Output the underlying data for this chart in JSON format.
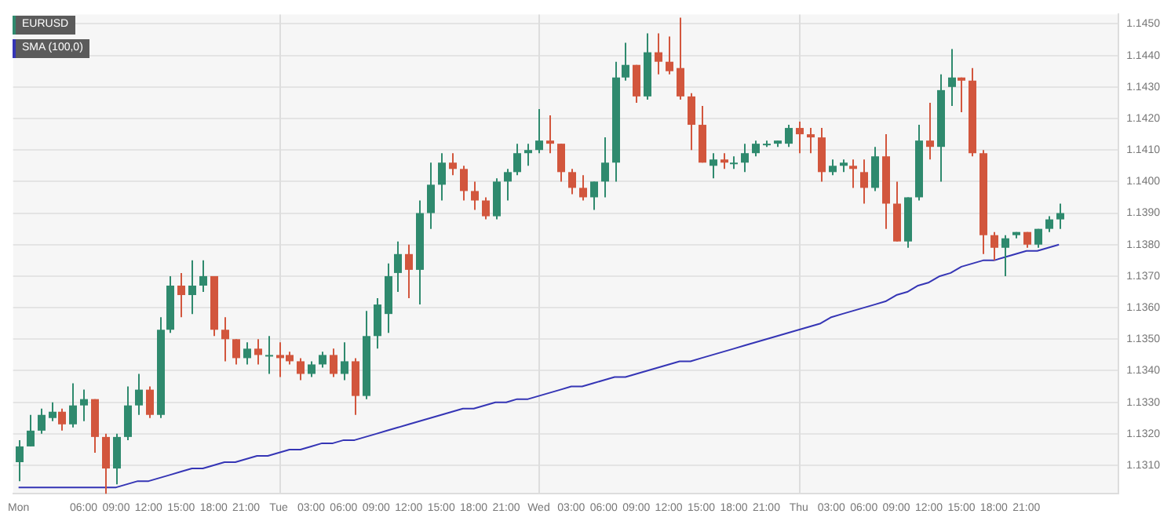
{
  "chart_data": {
    "type": "candlestick",
    "categories": [
      "Mon",
      null,
      null,
      null,
      null,
      null,
      "06:00",
      null,
      null,
      "09:00",
      null,
      null,
      "12:00",
      null,
      null,
      "15:00",
      null,
      null,
      "18:00",
      null,
      null,
      "21:00",
      null,
      null,
      "Tue",
      null,
      null,
      "03:00",
      null,
      null,
      "06:00",
      null,
      null,
      "09:00",
      null,
      null,
      "12:00",
      null,
      null,
      "15:00",
      null,
      null,
      "18:00",
      null,
      null,
      "21:00",
      null,
      null,
      "Wed",
      null,
      null,
      "03:00",
      null,
      null,
      "06:00",
      null,
      null,
      "09:00",
      null,
      null,
      "12:00",
      null,
      null,
      "15:00",
      null,
      null,
      "18:00",
      null,
      null,
      "21:00",
      null,
      null,
      "Thu",
      null,
      null,
      "03:00",
      null,
      null,
      "06:00",
      null,
      null,
      "09:00",
      null,
      null,
      "12:00",
      null,
      null,
      "15:00",
      null,
      null,
      "18:00",
      null,
      null,
      "21:00",
      null,
      null,
      null,
      null,
      null,
      null,
      null,
      null
    ],
    "series": [
      {
        "name": "EURUSD",
        "ohlc": [
          [
            1.1311,
            1.1318,
            1.1305,
            1.1316
          ],
          [
            1.1316,
            1.1326,
            1.1316,
            1.1321
          ],
          [
            1.1321,
            1.1328,
            1.132,
            1.1326
          ],
          [
            1.1325,
            1.133,
            1.1324,
            1.1327
          ],
          [
            1.1327,
            1.1328,
            1.1321,
            1.1323
          ],
          [
            1.1323,
            1.1336,
            1.1322,
            1.1329
          ],
          [
            1.1329,
            1.1334,
            1.1324,
            1.1331
          ],
          [
            1.1331,
            1.1331,
            1.1314,
            1.1319
          ],
          [
            1.1319,
            1.132,
            1.1301,
            1.1309
          ],
          [
            1.1309,
            1.132,
            1.1304,
            1.1319
          ],
          [
            1.1319,
            1.1335,
            1.1318,
            1.1329
          ],
          [
            1.1329,
            1.1339,
            1.1326,
            1.1334
          ],
          [
            1.1334,
            1.1335,
            1.1325,
            1.1326
          ],
          [
            1.1326,
            1.1357,
            1.1325,
            1.1353
          ],
          [
            1.1353,
            1.137,
            1.1352,
            1.1367
          ],
          [
            1.1367,
            1.1371,
            1.1357,
            1.1364
          ],
          [
            1.1364,
            1.1375,
            1.1358,
            1.1367
          ],
          [
            1.1367,
            1.1375,
            1.1365,
            1.137
          ],
          [
            1.137,
            1.137,
            1.1351,
            1.1353
          ],
          [
            1.1353,
            1.1357,
            1.1343,
            1.135
          ],
          [
            1.135,
            1.135,
            1.1342,
            1.1344
          ],
          [
            1.1344,
            1.1349,
            1.1342,
            1.1347
          ],
          [
            1.1347,
            1.135,
            1.1342,
            1.1345
          ],
          [
            1.1345,
            1.1351,
            1.1339,
            1.1345
          ],
          [
            1.1345,
            1.1349,
            1.1338,
            1.1344
          ],
          [
            1.1345,
            1.1346,
            1.1342,
            1.1343
          ],
          [
            1.1343,
            1.1344,
            1.1337,
            1.1339
          ],
          [
            1.1339,
            1.1343,
            1.1338,
            1.1342
          ],
          [
            1.1342,
            1.1346,
            1.1341,
            1.1345
          ],
          [
            1.1345,
            1.1347,
            1.1338,
            1.1339
          ],
          [
            1.1339,
            1.1349,
            1.1337,
            1.1343
          ],
          [
            1.1343,
            1.1344,
            1.1326,
            1.1332
          ],
          [
            1.1332,
            1.1359,
            1.1331,
            1.1351
          ],
          [
            1.1351,
            1.1363,
            1.1347,
            1.1361
          ],
          [
            1.1358,
            1.1374,
            1.1352,
            1.137
          ],
          [
            1.1371,
            1.1381,
            1.1365,
            1.1377
          ],
          [
            1.1377,
            1.138,
            1.1363,
            1.1372
          ],
          [
            1.1372,
            1.1394,
            1.1361,
            1.139
          ],
          [
            1.139,
            1.1406,
            1.1385,
            1.1399
          ],
          [
            1.1399,
            1.1409,
            1.1394,
            1.1406
          ],
          [
            1.1406,
            1.1409,
            1.1402,
            1.1404
          ],
          [
            1.1404,
            1.1405,
            1.1394,
            1.1397
          ],
          [
            1.1397,
            1.14,
            1.1391,
            1.1394
          ],
          [
            1.1394,
            1.1395,
            1.1388,
            1.1389
          ],
          [
            1.1389,
            1.1401,
            1.1388,
            1.14
          ],
          [
            1.14,
            1.1404,
            1.1394,
            1.1403
          ],
          [
            1.1403,
            1.1412,
            1.1402,
            1.1409
          ],
          [
            1.1409,
            1.1412,
            1.1405,
            1.141
          ],
          [
            1.141,
            1.1423,
            1.1409,
            1.1413
          ],
          [
            1.1413,
            1.1421,
            1.1409,
            1.1412
          ],
          [
            1.1412,
            1.1412,
            1.14,
            1.1403
          ],
          [
            1.1403,
            1.1404,
            1.1396,
            1.1398
          ],
          [
            1.1398,
            1.1402,
            1.1394,
            1.1395
          ],
          [
            1.1395,
            1.14,
            1.1391,
            1.14
          ],
          [
            1.14,
            1.1414,
            1.1395,
            1.1406
          ],
          [
            1.1406,
            1.1438,
            1.14,
            1.1433
          ],
          [
            1.1433,
            1.1444,
            1.1432,
            1.1437
          ],
          [
            1.1437,
            1.1437,
            1.1425,
            1.1427
          ],
          [
            1.1427,
            1.1447,
            1.1426,
            1.1441
          ],
          [
            1.1441,
            1.1447,
            1.1434,
            1.1438
          ],
          [
            1.1438,
            1.1446,
            1.1434,
            1.1435
          ],
          [
            1.1436,
            1.1452,
            1.1426,
            1.1427
          ],
          [
            1.1427,
            1.1428,
            1.141,
            1.1418
          ],
          [
            1.1418,
            1.1424,
            1.1406,
            1.1406
          ],
          [
            1.1405,
            1.1409,
            1.1401,
            1.1407
          ],
          [
            1.1407,
            1.1409,
            1.1404,
            1.1406
          ],
          [
            1.1406,
            1.1408,
            1.1404,
            1.1406
          ],
          [
            1.1406,
            1.1412,
            1.1403,
            1.1409
          ],
          [
            1.1409,
            1.1413,
            1.1408,
            1.1412
          ],
          [
            1.1412,
            1.1413,
            1.1411,
            1.1412
          ],
          [
            1.1412,
            1.1413,
            1.1411,
            1.1413
          ],
          [
            1.1412,
            1.1418,
            1.1411,
            1.1417
          ],
          [
            1.1417,
            1.1419,
            1.1409,
            1.1415
          ],
          [
            1.1415,
            1.1417,
            1.1409,
            1.1414
          ],
          [
            1.1414,
            1.1417,
            1.14,
            1.1403
          ],
          [
            1.1403,
            1.1407,
            1.1402,
            1.1405
          ],
          [
            1.1405,
            1.1407,
            1.1403,
            1.1406
          ],
          [
            1.1405,
            1.1407,
            1.1398,
            1.1404
          ],
          [
            1.1403,
            1.1407,
            1.1393,
            1.1398
          ],
          [
            1.1398,
            1.1411,
            1.1397,
            1.1408
          ],
          [
            1.1408,
            1.1415,
            1.1385,
            1.1393
          ],
          [
            1.1393,
            1.14,
            1.1381,
            1.1381
          ],
          [
            1.1381,
            1.1395,
            1.1379,
            1.1395
          ],
          [
            1.1395,
            1.1418,
            1.1394,
            1.1413
          ],
          [
            1.1413,
            1.1425,
            1.1407,
            1.1411
          ],
          [
            1.1411,
            1.1434,
            1.14,
            1.1429
          ],
          [
            1.143,
            1.1442,
            1.1424,
            1.1433
          ],
          [
            1.1433,
            1.1433,
            1.1422,
            1.1432
          ],
          [
            1.1432,
            1.1436,
            1.1408,
            1.1409
          ],
          [
            1.1409,
            1.141,
            1.1377,
            1.1383
          ],
          [
            1.1383,
            1.1384,
            1.1375,
            1.1379
          ],
          [
            1.1379,
            1.1383,
            1.137,
            1.1382
          ],
          [
            1.1383,
            1.1384,
            1.1382,
            1.1384
          ],
          [
            1.1384,
            1.1384,
            1.1379,
            1.138
          ],
          [
            1.138,
            1.1385,
            1.1379,
            1.1385
          ],
          [
            1.1385,
            1.1389,
            1.1384,
            1.1388
          ],
          [
            1.1388,
            1.1393,
            1.1385,
            1.139
          ],
          null,
          null,
          null,
          null,
          null
        ],
        "colors": [
          "#2f8a6e",
          "#2f8a6e",
          "#2f8a6e",
          "#2f8a6e",
          "#d2563d",
          "#2f8a6e",
          "#2f8a6e",
          "#d2563d",
          "#d2563d",
          "#2f8a6e",
          "#2f8a6e",
          "#2f8a6e",
          "#d2563d",
          "#2f8a6e",
          "#2f8a6e",
          "#d2563d",
          "#2f8a6e",
          "#2f8a6e",
          "#d2563d",
          "#d2563d",
          "#d2563d",
          "#2f8a6e",
          "#d2563d",
          "#2f8a6e",
          "#d2563d",
          "#d2563d",
          "#d2563d",
          "#2f8a6e",
          "#2f8a6e",
          "#d2563d",
          "#2f8a6e",
          "#d2563d",
          "#2f8a6e",
          "#2f8a6e",
          "#2f8a6e",
          "#2f8a6e",
          "#d2563d",
          "#2f8a6e",
          "#2f8a6e",
          "#2f8a6e",
          "#d2563d",
          "#d2563d",
          "#d2563d",
          "#d2563d",
          "#2f8a6e",
          "#2f8a6e",
          "#2f8a6e",
          "#2f8a6e",
          "#2f8a6e",
          "#d2563d",
          "#d2563d",
          "#d2563d",
          "#d2563d",
          "#2f8a6e",
          "#2f8a6e",
          "#2f8a6e",
          "#2f8a6e",
          "#d2563d",
          "#2f8a6e",
          "#d2563d",
          "#d2563d",
          "#d2563d",
          "#d2563d",
          "#d2563d",
          "#2f8a6e",
          "#d2563d",
          "#2f8a6e",
          "#2f8a6e",
          "#2f8a6e",
          "#2f8a6e",
          "#2f8a6e",
          "#2f8a6e",
          "#d2563d",
          "#d2563d",
          "#d2563d",
          "#2f8a6e",
          "#2f8a6e",
          "#d2563d",
          "#d2563d",
          "#2f8a6e",
          "#d2563d",
          "#d2563d",
          "#2f8a6e",
          "#2f8a6e",
          "#d2563d",
          "#2f8a6e",
          "#2f8a6e",
          "#d2563d",
          "#d2563d",
          "#d2563d",
          "#d2563d",
          "#2f8a6e",
          "#2f8a6e",
          "#d2563d",
          "#2f8a6e",
          "#2f8a6e",
          "#2f8a6e",
          null,
          null,
          null,
          null,
          null
        ]
      },
      {
        "type": "line",
        "name": "SMA (100,0)",
        "color": "#3535b5",
        "values": [
          1.1303,
          1.1303,
          1.1303,
          1.1303,
          1.1303,
          1.1303,
          1.1303,
          1.1303,
          1.1303,
          1.1303,
          1.1304,
          1.1305,
          1.1305,
          1.1306,
          1.1307,
          1.1308,
          1.1309,
          1.1309,
          1.131,
          1.1311,
          1.1311,
          1.1312,
          1.1313,
          1.1313,
          1.1314,
          1.1315,
          1.1315,
          1.1316,
          1.1317,
          1.1317,
          1.1318,
          1.1318,
          1.1319,
          1.132,
          1.1321,
          1.1322,
          1.1323,
          1.1324,
          1.1325,
          1.1326,
          1.1327,
          1.1328,
          1.1328,
          1.1329,
          1.133,
          1.133,
          1.1331,
          1.1331,
          1.1332,
          1.1333,
          1.1334,
          1.1335,
          1.1335,
          1.1336,
          1.1337,
          1.1338,
          1.1338,
          1.1339,
          1.134,
          1.1341,
          1.1342,
          1.1343,
          1.1343,
          1.1344,
          1.1345,
          1.1346,
          1.1347,
          1.1348,
          1.1349,
          1.135,
          1.1351,
          1.1352,
          1.1353,
          1.1354,
          1.1355,
          1.1357,
          1.1358,
          1.1359,
          1.136,
          1.1361,
          1.1362,
          1.1364,
          1.1365,
          1.1367,
          1.1368,
          1.137,
          1.1371,
          1.1373,
          1.1374,
          1.1375,
          1.1375,
          1.1376,
          1.1377,
          1.1378,
          1.1378,
          1.1379,
          1.138,
          null,
          null,
          null,
          null,
          null
        ]
      }
    ],
    "ylim": [
      1.1301,
      1.1453
    ],
    "yticks": [
      {
        "value": 1.131,
        "label": "1.1310"
      },
      {
        "value": 1.132,
        "label": "1.1320"
      },
      {
        "value": 1.133,
        "label": "1.1330"
      },
      {
        "value": 1.134,
        "label": "1.1340"
      },
      {
        "value": 1.135,
        "label": "1.1350"
      },
      {
        "value": 1.136,
        "label": "1.1360"
      },
      {
        "value": 1.137,
        "label": "1.1370"
      },
      {
        "value": 1.138,
        "label": "1.1380"
      },
      {
        "value": 1.139,
        "label": "1.1390"
      },
      {
        "value": 1.14,
        "label": "1.1400"
      },
      {
        "value": 1.141,
        "label": "1.1410"
      },
      {
        "value": 1.142,
        "label": "1.1420"
      },
      {
        "value": 1.143,
        "label": "1.1430"
      },
      {
        "value": 1.144,
        "label": "1.1440"
      },
      {
        "value": 1.145,
        "label": "1.1450"
      }
    ],
    "ref_lines": [
      {
        "axis": "x",
        "value": "Tue",
        "color": "#dddddd"
      },
      {
        "axis": "x",
        "value": "Wed",
        "color": "#dddddd"
      },
      {
        "axis": "x",
        "value": "Thu",
        "color": "#dddddd"
      }
    ],
    "grid": "y",
    "legend": "top left",
    "marker": "none",
    "line_style": "solid"
  }
}
